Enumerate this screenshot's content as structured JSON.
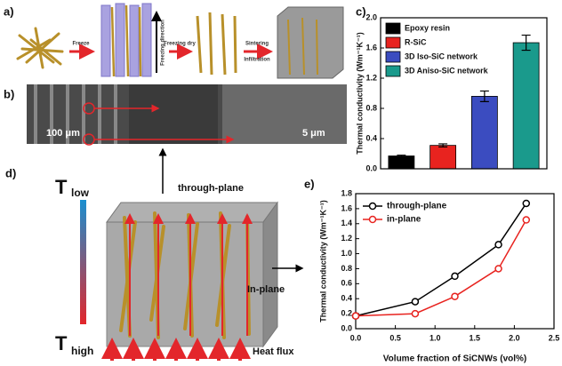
{
  "panels": {
    "a": {
      "label": "a)",
      "steps": [
        "Freeze",
        "Freezing direction",
        "Freezing dry",
        "Sintering",
        "Infiltration"
      ]
    },
    "b": {
      "label": "b)",
      "scale_bars": [
        "100 μm",
        "5 μm"
      ]
    },
    "c": {
      "label": "c)"
    },
    "d": {
      "label": "d)",
      "t_low": [
        "T",
        "low"
      ],
      "t_high": [
        "T",
        "high"
      ],
      "through_plane": "through-plane",
      "in_plane": "In-plane",
      "heat_flux": "Heat flux"
    },
    "e": {
      "label": "e)"
    }
  },
  "chart_data": [
    {
      "type": "bar",
      "y_label": "Thermal conductivity (Wm⁻¹K⁻¹)",
      "ylim": [
        0,
        2.0
      ],
      "yticks": [
        {
          "value": 0,
          "label": "0.0"
        },
        0.4,
        0.8,
        1.2,
        1.6,
        {
          "value": 2.0,
          "label": "2.0"
        }
      ],
      "legend": "upper left",
      "series": [
        {
          "name": "Epoxy resin",
          "color": "#000000",
          "values": [
            0.17
          ],
          "errors": [
            0.01
          ]
        },
        {
          "name": "R-SiC",
          "color": "#e8231f",
          "values": [
            0.31
          ],
          "errors": [
            0.02
          ]
        },
        {
          "name": "3D Iso-SiC network",
          "color": "#3b4cc0",
          "values": [
            0.96
          ],
          "errors": [
            0.07
          ]
        },
        {
          "name": "3D Aniso-SiC network",
          "color": "#1a9a8c",
          "values": [
            1.67
          ],
          "errors": [
            0.1
          ]
        }
      ]
    },
    {
      "type": "line",
      "x_label": "Volume fraction of SiCNWs (vol%)",
      "y_label": "Thermal conductivity (Wm⁻¹K⁻¹)",
      "x": [
        0,
        0.75,
        1.25,
        1.8,
        2.15
      ],
      "xlim": [
        0,
        2.5
      ],
      "ylim": [
        0,
        1.8
      ],
      "xticks": [
        {
          "value": 0,
          "label": "0.0"
        },
        0.5,
        {
          "value": 1.0,
          "label": "1.0"
        },
        1.5,
        {
          "value": 2.0,
          "label": "2.0"
        },
        2.5
      ],
      "yticks": [
        {
          "value": 0,
          "label": "0.0"
        },
        0.2,
        0.4,
        0.6,
        0.8,
        {
          "value": 1.0,
          "label": "1.0"
        },
        1.2,
        1.4,
        1.6,
        1.8
      ],
      "legend": "upper left",
      "series": [
        {
          "name": "through-plane",
          "color": "#000000",
          "values": [
            0.17,
            0.36,
            0.7,
            1.12,
            1.67
          ]
        },
        {
          "name": "in-plane",
          "color": "#e8231f",
          "values": [
            0.17,
            0.2,
            0.43,
            0.8,
            1.45
          ]
        }
      ]
    }
  ]
}
